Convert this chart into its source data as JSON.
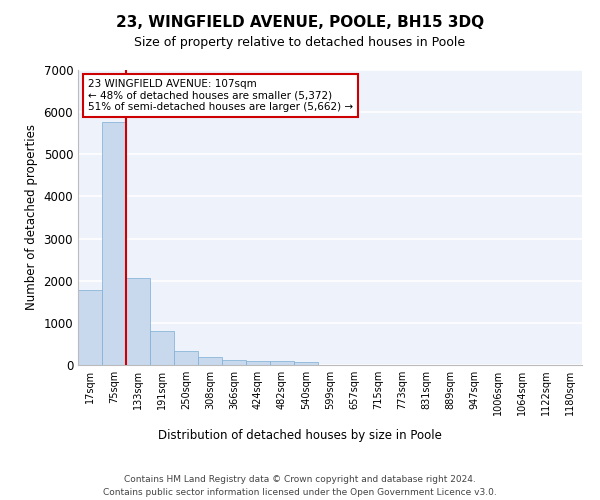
{
  "title": "23, WINGFIELD AVENUE, POOLE, BH15 3DQ",
  "subtitle": "Size of property relative to detached houses in Poole",
  "xlabel": "Distribution of detached houses by size in Poole",
  "ylabel": "Number of detached properties",
  "bar_color": "#c8d9ee",
  "bar_edgecolor": "#7aadd4",
  "categories": [
    "17sqm",
    "75sqm",
    "133sqm",
    "191sqm",
    "250sqm",
    "308sqm",
    "366sqm",
    "424sqm",
    "482sqm",
    "540sqm",
    "599sqm",
    "657sqm",
    "715sqm",
    "773sqm",
    "831sqm",
    "889sqm",
    "947sqm",
    "1006sqm",
    "1064sqm",
    "1122sqm",
    "1180sqm"
  ],
  "values": [
    1770,
    5770,
    2060,
    800,
    340,
    185,
    110,
    105,
    95,
    65,
    0,
    0,
    0,
    0,
    0,
    0,
    0,
    0,
    0,
    0,
    0
  ],
  "ylim": [
    0,
    7000
  ],
  "yticks": [
    0,
    1000,
    2000,
    3000,
    4000,
    5000,
    6000,
    7000
  ],
  "vline_x_index": 1.5,
  "annotation_line1": "23 WINGFIELD AVENUE: 107sqm",
  "annotation_line2": "← 48% of detached houses are smaller (5,372)",
  "annotation_line3": "51% of semi-detached houses are larger (5,662) →",
  "vline_color": "#cc0000",
  "background_color": "#eef2fb",
  "footer1": "Contains HM Land Registry data © Crown copyright and database right 2024.",
  "footer2": "Contains public sector information licensed under the Open Government Licence v3.0."
}
